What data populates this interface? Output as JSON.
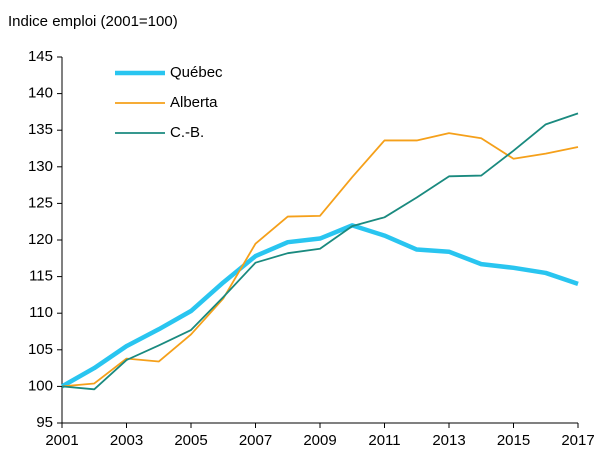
{
  "chart_data": {
    "type": "line",
    "title": "Indice emploi (2001=100)",
    "x": [
      2001,
      2002,
      2003,
      2004,
      2005,
      2006,
      2007,
      2008,
      2009,
      2010,
      2011,
      2012,
      2013,
      2014,
      2015,
      2016,
      2017
    ],
    "series": [
      {
        "name": "Québec",
        "color": "#29c5f0",
        "values": [
          100,
          102.5,
          105.5,
          107.8,
          110.3,
          114.2,
          117.8,
          119.7,
          120.2,
          122.0,
          120.6,
          118.7,
          118.4,
          116.7,
          116.2,
          115.5,
          114.0
        ]
      },
      {
        "name": "Alberta",
        "color": "#f5a01a",
        "values": [
          100,
          100.4,
          103.8,
          103.4,
          107.1,
          112.0,
          119.5,
          123.2,
          123.3,
          128.6,
          133.6,
          133.6,
          134.6,
          133.9,
          131.1,
          131.8,
          132.7
        ]
      },
      {
        "name": "C.-B.",
        "color": "#1a8a7f",
        "values": [
          100,
          99.6,
          103.6,
          105.6,
          107.7,
          112.2,
          116.9,
          118.2,
          118.8,
          121.9,
          123.1,
          125.8,
          128.7,
          128.8,
          132.2,
          135.8,
          137.3
        ]
      }
    ],
    "xlim": [
      2001,
      2017
    ],
    "xticks": [
      2001,
      2003,
      2005,
      2007,
      2009,
      2011,
      2013,
      2015,
      2017
    ],
    "ylim": [
      95,
      145
    ],
    "yticks": [
      95,
      100,
      105,
      110,
      115,
      120,
      125,
      130,
      135,
      140,
      145
    ],
    "legend": "upper left",
    "grid": false
  }
}
